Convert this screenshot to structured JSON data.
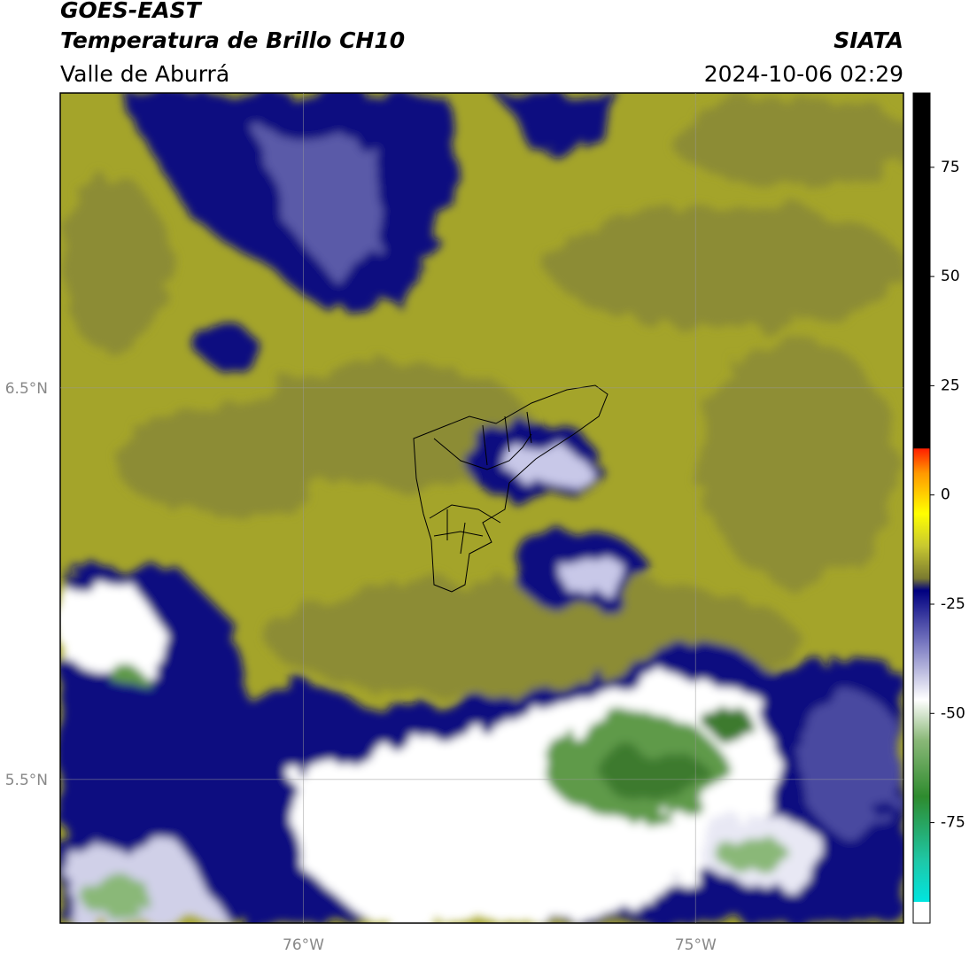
{
  "header": {
    "title": "GOES-EAST",
    "subtitle": "Temperatura de Brillo CH10",
    "region": "Valle de Aburrá",
    "source": "SIATA",
    "datetime": "2024-10-06 02:29"
  },
  "map": {
    "xlim": [
      -76.62,
      -74.47
    ],
    "ylim": [
      5.133,
      7.253
    ],
    "xticks": [
      {
        "value": -76,
        "label": "76°W"
      },
      {
        "value": -75,
        "label": "75°W"
      }
    ],
    "yticks": [
      {
        "value": 6.5,
        "label": "6.5°N"
      },
      {
        "value": 5.5,
        "label": "5.5°N"
      }
    ],
    "grid": true
  },
  "colorbar": {
    "lim": [
      -98,
      92
    ],
    "ticks": [
      75,
      50,
      25,
      0,
      -25,
      -50,
      -75
    ]
  }
}
